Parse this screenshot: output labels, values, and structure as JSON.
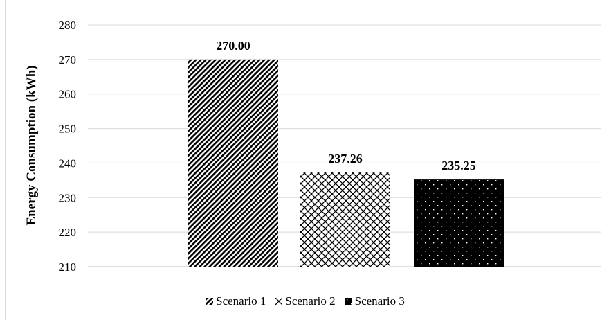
{
  "chart_data": {
    "type": "bar",
    "categories": [
      "Scenario 1",
      "Scenario 2",
      "Scenario 3"
    ],
    "series": [
      {
        "name": "Scenario 1",
        "value": 270.0,
        "label": "270.00",
        "pattern": "diagonal-stripes"
      },
      {
        "name": "Scenario 2",
        "value": 237.26,
        "label": "237.26",
        "pattern": "lattice"
      },
      {
        "name": "Scenario 3",
        "value": 235.25,
        "label": "235.25",
        "pattern": "black-dots"
      }
    ],
    "ylabel": "Energy Consumption (kWh)",
    "xlabel": "",
    "ylim": [
      210,
      280
    ],
    "yticks": [
      "210",
      "220",
      "230",
      "240",
      "250",
      "260",
      "270",
      "280"
    ],
    "grid": true,
    "legend_position": "bottom",
    "colors": {
      "bar_fill": "#000000",
      "bar_bg": "#ffffff",
      "grid": "#d9d9d9"
    }
  }
}
